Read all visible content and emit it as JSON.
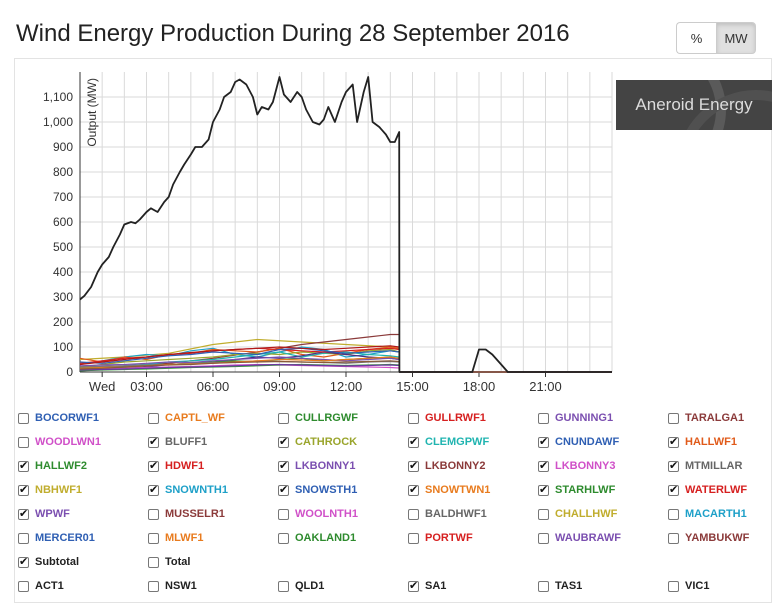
{
  "page": {
    "title": "Wind Energy Production During 28 September 2016",
    "brand": "Aneroid Energy",
    "unit_buttons": [
      {
        "label": "%",
        "active": false
      },
      {
        "label": "MW",
        "active": true
      }
    ]
  },
  "chart_data": {
    "type": "line",
    "title": "Wind Energy Production During 28 September 2016",
    "ylabel": "Output (MW)",
    "xlabel": "",
    "ylim": [
      0,
      1200
    ],
    "yticks": [
      0,
      100,
      200,
      300,
      400,
      500,
      600,
      700,
      800,
      900,
      1000,
      1100
    ],
    "ytick_labels": [
      "0",
      "100",
      "200",
      "300",
      "400",
      "500",
      "600",
      "700",
      "800",
      "900",
      "1,000",
      "1,100"
    ],
    "xlim": [
      0,
      24
    ],
    "xticks": [
      1,
      3,
      6,
      9,
      12,
      15,
      18,
      21
    ],
    "xtick_labels": [
      "Wed",
      "03:00",
      "06:00",
      "09:00",
      "12:00",
      "15:00",
      "18:00",
      "21:00"
    ],
    "grid": true,
    "series": [
      {
        "name": "SA1",
        "color": "#222222",
        "width": 1.8,
        "x": [
          0,
          0.2,
          0.5,
          0.8,
          1,
          1.3,
          1.5,
          1.8,
          2,
          2.3,
          2.5,
          2.7,
          3,
          3.2,
          3.5,
          3.8,
          4,
          4.2,
          4.5,
          4.7,
          5,
          5.2,
          5.5,
          5.8,
          6,
          6.3,
          6.5,
          6.8,
          7,
          7.2,
          7.5,
          7.8,
          8,
          8.2,
          8.5,
          8.7,
          9,
          9.2,
          9.5,
          9.8,
          10,
          10.2,
          10.5,
          10.8,
          11,
          11.2,
          11.5,
          11.8,
          12,
          12.3,
          12.5,
          12.8,
          13,
          13.2,
          13.5,
          13.8,
          14,
          14.2,
          14.4,
          14.41,
          15,
          16,
          16.5,
          17,
          17.5,
          17.7,
          18,
          18.3,
          18.6,
          19,
          19.3,
          24
        ],
        "y": [
          290,
          305,
          340,
          400,
          430,
          460,
          500,
          550,
          590,
          600,
          595,
          610,
          640,
          655,
          640,
          680,
          700,
          750,
          800,
          830,
          870,
          900,
          900,
          930,
          1000,
          1050,
          1100,
          1120,
          1160,
          1170,
          1150,
          1100,
          1030,
          1060,
          1050,
          1080,
          1180,
          1110,
          1080,
          1120,
          1100,
          1050,
          1000,
          990,
          1010,
          1060,
          1000,
          1080,
          1120,
          1150,
          1000,
          1120,
          1180,
          1000,
          980,
          950,
          920,
          920,
          960,
          0,
          0,
          0,
          0,
          0,
          0,
          0,
          90,
          90,
          70,
          30,
          0,
          0
        ]
      },
      {
        "name": "NBHWF1",
        "color": "#c0ad2e",
        "width": 1.2,
        "x": [
          0,
          2,
          4,
          6,
          8,
          10,
          12,
          14,
          14.4,
          14.41,
          24
        ],
        "y": [
          50,
          60,
          75,
          110,
          130,
          120,
          110,
          100,
          90,
          0,
          0
        ]
      },
      {
        "name": "LKBONNY2",
        "color": "#8b3a3a",
        "width": 1.2,
        "x": [
          0,
          2,
          4,
          6,
          8,
          10,
          12,
          13,
          14,
          14.4,
          14.41,
          24
        ],
        "y": [
          20,
          25,
          35,
          55,
          80,
          110,
          130,
          140,
          150,
          150,
          0,
          0
        ]
      },
      {
        "name": "SNOWNTH1",
        "color": "#1ea0c8",
        "width": 1.2,
        "x": [
          0,
          1,
          2,
          3,
          4,
          5,
          6,
          7,
          8,
          9,
          10,
          11,
          12,
          13,
          14,
          14.4,
          14.41,
          24
        ],
        "y": [
          30,
          45,
          60,
          70,
          65,
          85,
          95,
          70,
          60,
          80,
          100,
          90,
          60,
          70,
          85,
          80,
          0,
          0
        ]
      },
      {
        "name": "HALLWF1",
        "color": "#e05a1a",
        "width": 1.2,
        "x": [
          0,
          1,
          2,
          3,
          4,
          5,
          6,
          7,
          8,
          9,
          10,
          11,
          12,
          13,
          14,
          14.4,
          14.41,
          24
        ],
        "y": [
          55,
          40,
          60,
          50,
          70,
          75,
          90,
          85,
          80,
          95,
          70,
          60,
          75,
          90,
          100,
          95,
          0,
          0
        ]
      },
      {
        "name": "CATHROCK",
        "color": "#9aa52c",
        "width": 1.2,
        "x": [
          0,
          1,
          2,
          3,
          4,
          5,
          6,
          7,
          8,
          9,
          10,
          11,
          12,
          13,
          14,
          14.4,
          14.41,
          24
        ],
        "y": [
          20,
          30,
          40,
          45,
          50,
          55,
          60,
          70,
          75,
          70,
          80,
          75,
          70,
          85,
          90,
          80,
          0,
          0
        ]
      },
      {
        "name": "CLEMGPWF",
        "color": "#20b4b0",
        "width": 1.2,
        "x": [
          0,
          1,
          2,
          3,
          4,
          5,
          6,
          7,
          8,
          9,
          10,
          11,
          12,
          13,
          14,
          14.4,
          14.41,
          24
        ],
        "y": [
          10,
          15,
          25,
          30,
          40,
          45,
          50,
          60,
          70,
          80,
          60,
          75,
          80,
          70,
          65,
          60,
          0,
          0
        ]
      },
      {
        "name": "CNUNDAWF",
        "color": "#4b2d82",
        "width": 1.2,
        "x": [
          0,
          1,
          2,
          3,
          4,
          5,
          6,
          7,
          8,
          9,
          10,
          11,
          12,
          13,
          14,
          14.4,
          14.41,
          24
        ],
        "y": [
          5,
          10,
          15,
          20,
          30,
          35,
          40,
          50,
          60,
          55,
          65,
          80,
          70,
          60,
          55,
          50,
          0,
          0
        ]
      },
      {
        "name": "HALLWF2",
        "color": "#2e8b2e",
        "width": 1.2,
        "x": [
          0,
          1,
          2,
          3,
          4,
          5,
          6,
          7,
          8,
          9,
          10,
          11,
          12,
          13,
          14,
          14.4,
          14.41,
          24
        ],
        "y": [
          15,
          20,
          18,
          25,
          30,
          35,
          40,
          45,
          40,
          50,
          55,
          45,
          50,
          55,
          60,
          50,
          0,
          0
        ]
      },
      {
        "name": "HDWF1",
        "color": "#d62020",
        "width": 1.2,
        "x": [
          0,
          1,
          2,
          3,
          4,
          5,
          6,
          7,
          8,
          9,
          10,
          11,
          12,
          13,
          14,
          14.4,
          14.41,
          24
        ],
        "y": [
          35,
          45,
          55,
          60,
          70,
          75,
          85,
          90,
          95,
          90,
          85,
          80,
          85,
          90,
          95,
          90,
          0,
          0
        ]
      },
      {
        "name": "LKBONNY1",
        "color": "#7b4fb0",
        "width": 1.2,
        "x": [
          0,
          1,
          2,
          3,
          4,
          5,
          6,
          7,
          8,
          9,
          10,
          11,
          12,
          13,
          14,
          14.4,
          14.41,
          24
        ],
        "y": [
          25,
          28,
          30,
          35,
          40,
          38,
          45,
          50,
          55,
          60,
          55,
          50,
          45,
          50,
          55,
          50,
          0,
          0
        ]
      },
      {
        "name": "LKBONNY3",
        "color": "#d050c8",
        "width": 1.2,
        "x": [
          0,
          1,
          2,
          3,
          4,
          5,
          6,
          7,
          8,
          9,
          10,
          11,
          12,
          13,
          14,
          14.4,
          14.41,
          24
        ],
        "y": [
          10,
          12,
          15,
          18,
          20,
          22,
          25,
          28,
          30,
          28,
          26,
          24,
          22,
          20,
          18,
          16,
          0,
          0
        ]
      },
      {
        "name": "MTMILLAR",
        "color": "#777777",
        "width": 1.2,
        "x": [
          0,
          1,
          2,
          3,
          4,
          5,
          6,
          7,
          8,
          9,
          10,
          11,
          12,
          13,
          14,
          14.4,
          14.41,
          24
        ],
        "y": [
          20,
          22,
          25,
          28,
          30,
          35,
          38,
          40,
          45,
          42,
          40,
          38,
          35,
          40,
          42,
          40,
          0,
          0
        ]
      },
      {
        "name": "SNOWSTH1",
        "color": "#2f5fb3",
        "width": 1.2,
        "x": [
          0,
          1,
          2,
          3,
          4,
          5,
          6,
          7,
          8,
          9,
          10,
          11,
          12,
          13,
          14,
          14.4,
          14.41,
          24
        ],
        "y": [
          40,
          35,
          45,
          55,
          65,
          70,
          80,
          75,
          70,
          90,
          95,
          85,
          75,
          80,
          85,
          80,
          0,
          0
        ]
      },
      {
        "name": "SNOWTWN1",
        "color": "#e87b1e",
        "width": 1.2,
        "x": [
          0,
          1,
          2,
          3,
          4,
          5,
          6,
          7,
          8,
          9,
          10,
          11,
          12,
          13,
          14,
          14.4,
          14.41,
          24
        ],
        "y": [
          15,
          18,
          20,
          25,
          30,
          32,
          35,
          40,
          45,
          50,
          48,
          45,
          50,
          55,
          60,
          55,
          0,
          0
        ]
      },
      {
        "name": "STARHLWF",
        "color": "#3a9a3a",
        "width": 1.2,
        "x": [
          0,
          1,
          2,
          3,
          4,
          5,
          6,
          7,
          8,
          9,
          10,
          11,
          12,
          13,
          14,
          14.4,
          14.41,
          24
        ],
        "y": [
          5,
          8,
          10,
          12,
          15,
          18,
          20,
          22,
          25,
          28,
          30,
          28,
          26,
          28,
          30,
          28,
          0,
          0
        ]
      },
      {
        "name": "WATERLWF",
        "color": "#b01818",
        "width": 1.2,
        "x": [
          0,
          1,
          2,
          3,
          4,
          5,
          6,
          7,
          8,
          9,
          10,
          11,
          12,
          13,
          14,
          14.4,
          14.41,
          24
        ],
        "y": [
          30,
          40,
          50,
          60,
          70,
          78,
          85,
          90,
          95,
          100,
          95,
          90,
          95,
          100,
          105,
          100,
          0,
          0
        ]
      },
      {
        "name": "WPWF",
        "color": "#6a3aa0",
        "width": 1.2,
        "x": [
          0,
          1,
          2,
          3,
          4,
          5,
          6,
          7,
          8,
          9,
          10,
          11,
          12,
          13,
          14,
          14.4,
          14.41,
          24
        ],
        "y": [
          8,
          10,
          12,
          15,
          18,
          20,
          22,
          25,
          28,
          30,
          28,
          26,
          24,
          26,
          28,
          26,
          0,
          0
        ]
      },
      {
        "name": "BLUFF1",
        "color": "#8a5a3a",
        "width": 1.2,
        "x": [
          0,
          1,
          2,
          3,
          4,
          5,
          6,
          7,
          8,
          9,
          10,
          11,
          12,
          13,
          14,
          14.4,
          14.41,
          24
        ],
        "y": [
          12,
          15,
          20,
          25,
          28,
          30,
          35,
          38,
          40,
          42,
          40,
          38,
          40,
          42,
          45,
          42,
          0,
          0
        ]
      }
    ]
  },
  "legend": {
    "rows": [
      [
        {
          "label": "BOCORWF1",
          "color": "#2f5fb3",
          "checked": false
        },
        {
          "label": "CAPTL_WF",
          "color": "#e87b1e",
          "checked": false
        },
        {
          "label": "CULLRGWF",
          "color": "#2e8b2e",
          "checked": false
        },
        {
          "label": "GULLRWF1",
          "color": "#d62020",
          "checked": false
        },
        {
          "label": "GUNNING1",
          "color": "#7b4fb0",
          "checked": false
        },
        {
          "label": "TARALGA1",
          "color": "#8b3a3a",
          "checked": false
        }
      ],
      [
        {
          "label": "WOODLWN1",
          "color": "#d050c8",
          "checked": false
        },
        {
          "label": "BLUFF1",
          "color": "#666666",
          "checked": true
        },
        {
          "label": "CATHROCK",
          "color": "#9aa52c",
          "checked": true
        },
        {
          "label": "CLEMGPWF",
          "color": "#20b4b0",
          "checked": true
        },
        {
          "label": "CNUNDAWF",
          "color": "#2f5fb3",
          "checked": true
        },
        {
          "label": "HALLWF1",
          "color": "#e05a1a",
          "checked": true
        }
      ],
      [
        {
          "label": "HALLWF2",
          "color": "#2e8b2e",
          "checked": true
        },
        {
          "label": "HDWF1",
          "color": "#d62020",
          "checked": true
        },
        {
          "label": "LKBONNY1",
          "color": "#7b4fb0",
          "checked": true
        },
        {
          "label": "LKBONNY2",
          "color": "#8b3a3a",
          "checked": true
        },
        {
          "label": "LKBONNY3",
          "color": "#d050c8",
          "checked": true
        },
        {
          "label": "MTMILLAR",
          "color": "#666666",
          "checked": true
        }
      ],
      [
        {
          "label": "NBHWF1",
          "color": "#c0ad2e",
          "checked": true
        },
        {
          "label": "SNOWNTH1",
          "color": "#1ea0c8",
          "checked": true
        },
        {
          "label": "SNOWSTH1",
          "color": "#2f5fb3",
          "checked": true
        },
        {
          "label": "SNOWTWN1",
          "color": "#e87b1e",
          "checked": true
        },
        {
          "label": "STARHLWF",
          "color": "#2e8b2e",
          "checked": true
        },
        {
          "label": "WATERLWF",
          "color": "#d62020",
          "checked": true
        }
      ],
      [
        {
          "label": "WPWF",
          "color": "#7b4fb0",
          "checked": true
        },
        {
          "label": "MUSSELR1",
          "color": "#8b3a3a",
          "checked": false
        },
        {
          "label": "WOOLNTH1",
          "color": "#d050c8",
          "checked": false
        },
        {
          "label": "BALDHWF1",
          "color": "#666666",
          "checked": false
        },
        {
          "label": "CHALLHWF",
          "color": "#c0ad2e",
          "checked": false
        },
        {
          "label": "MACARTH1",
          "color": "#1ea0c8",
          "checked": false
        }
      ],
      [
        {
          "label": "MERCER01",
          "color": "#2f5fb3",
          "checked": false
        },
        {
          "label": "MLWF1",
          "color": "#e87b1e",
          "checked": false
        },
        {
          "label": "OAKLAND1",
          "color": "#2e8b2e",
          "checked": false
        },
        {
          "label": "PORTWF",
          "color": "#d62020",
          "checked": false
        },
        {
          "label": "WAUBRAWF",
          "color": "#7b4fb0",
          "checked": false
        },
        {
          "label": "YAMBUKWF",
          "color": "#8b3a3a",
          "checked": false
        }
      ],
      [
        {
          "label": "Subtotal",
          "color": "#222222",
          "checked": true
        },
        {
          "label": "Total",
          "color": "#222222",
          "checked": false
        }
      ],
      [
        {
          "label": "ACT1",
          "color": "#222222",
          "checked": false
        },
        {
          "label": "NSW1",
          "color": "#222222",
          "checked": false
        },
        {
          "label": "QLD1",
          "color": "#222222",
          "checked": false
        },
        {
          "label": "SA1",
          "color": "#222222",
          "checked": true
        },
        {
          "label": "TAS1",
          "color": "#222222",
          "checked": false
        },
        {
          "label": "VIC1",
          "color": "#222222",
          "checked": false
        }
      ]
    ]
  }
}
